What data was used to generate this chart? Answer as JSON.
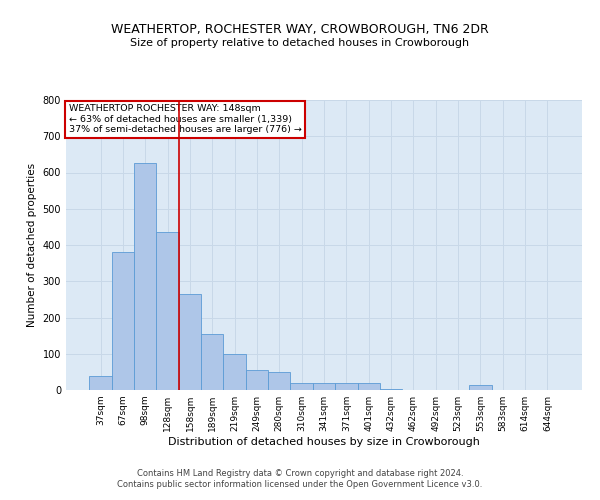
{
  "title": "WEATHERTOP, ROCHESTER WAY, CROWBOROUGH, TN6 2DR",
  "subtitle": "Size of property relative to detached houses in Crowborough",
  "xlabel": "Distribution of detached houses by size in Crowborough",
  "ylabel": "Number of detached properties",
  "footer_line1": "Contains HM Land Registry data © Crown copyright and database right 2024.",
  "footer_line2": "Contains public sector information licensed under the Open Government Licence v3.0.",
  "categories": [
    "37sqm",
    "67sqm",
    "98sqm",
    "128sqm",
    "158sqm",
    "189sqm",
    "219sqm",
    "249sqm",
    "280sqm",
    "310sqm",
    "341sqm",
    "371sqm",
    "401sqm",
    "432sqm",
    "462sqm",
    "492sqm",
    "523sqm",
    "553sqm",
    "583sqm",
    "614sqm",
    "644sqm"
  ],
  "values": [
    40,
    380,
    625,
    435,
    265,
    155,
    100,
    55,
    50,
    20,
    18,
    18,
    18,
    2,
    0,
    0,
    0,
    15,
    0,
    0,
    0
  ],
  "bar_color": "#aec6e8",
  "bar_edge_color": "#5b9bd5",
  "grid_color": "#c8d8e8",
  "background_color": "#dce9f5",
  "vline_x": 3.5,
  "vline_color": "#cc0000",
  "annotation_text": "WEATHERTOP ROCHESTER WAY: 148sqm\n← 63% of detached houses are smaller (1,339)\n37% of semi-detached houses are larger (776) →",
  "annotation_box_color": "#ffffff",
  "annotation_box_edge": "#cc0000",
  "ylim": [
    0,
    800
  ],
  "yticks": [
    0,
    100,
    200,
    300,
    400,
    500,
    600,
    700,
    800
  ]
}
